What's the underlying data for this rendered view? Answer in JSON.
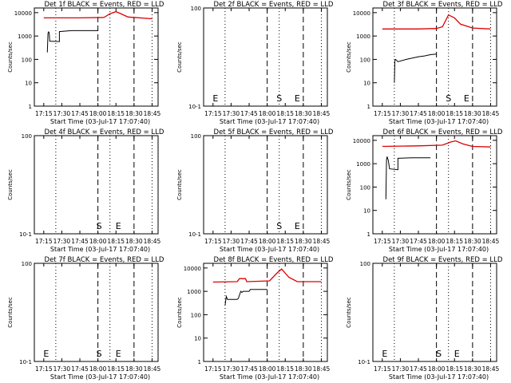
{
  "chart_data": [
    {
      "type": "line",
      "title": "Det 1f BLACK = Events, RED = LLD",
      "xlabel": "Start Time (03-Jul-17 17:07:40)",
      "ylabel": "Counts/sec",
      "x_ticks": [
        "17:15",
        "17:30",
        "17:45",
        "18:00",
        "18:15",
        "18:30",
        "18:45"
      ],
      "y_scale": "log",
      "y_ticks": [
        "1",
        "10",
        "100",
        "1000",
        "10000"
      ],
      "markers": [],
      "series": [
        {
          "name": "Events",
          "color": "#000000",
          "points": [
            [
              "17:18",
              200
            ],
            [
              "17:18.5",
              1300
            ],
            [
              "17:19",
              1500
            ],
            [
              "17:19.5",
              1400
            ],
            [
              "17:20",
              600
            ],
            [
              "17:28",
              580
            ],
            [
              "17:28",
              1550
            ],
            [
              "17:38",
              1700
            ],
            [
              "18:00",
              1700
            ]
          ]
        },
        {
          "name": "LLD",
          "color": "#dd0000",
          "points": [
            [
              "17:15",
              6000
            ],
            [
              "17:45",
              6000
            ],
            [
              "18:05",
              6200
            ],
            [
              "18:10",
              9000
            ],
            [
              "18:15",
              11000
            ],
            [
              "18:20",
              8500
            ],
            [
              "18:25",
              6500
            ],
            [
              "18:45",
              5500
            ]
          ]
        }
      ]
    },
    {
      "type": "line",
      "title": "Det 2f BLACK = Events, RED = LLD",
      "xlabel": "Start Time (03-Jul-17 17:07:40)",
      "ylabel": "Counts/sec",
      "x_ticks": [
        "17:15",
        "17:30",
        "17:45",
        "18:00",
        "18:15",
        "18:30",
        "18:45"
      ],
      "y_scale": "log",
      "y_ticks": [
        "10-1",
        "100"
      ],
      "markers": [
        {
          "label": "E",
          "x": "17:17"
        },
        {
          "label": "S",
          "x": "18:10"
        },
        {
          "label": "E",
          "x": "18:25"
        }
      ],
      "series": []
    },
    {
      "type": "line",
      "title": "Det 3f BLACK = Events, RED = LLD",
      "xlabel": "Start Time (03-Jul-17 17:07:40)",
      "ylabel": "Counts/sec",
      "x_ticks": [
        "17:15",
        "17:30",
        "17:45",
        "18:00",
        "18:15",
        "18:30",
        "18:45"
      ],
      "y_scale": "log",
      "y_ticks": [
        "1",
        "10",
        "100",
        "1000",
        "10000"
      ],
      "markers": [
        {
          "label": "S",
          "x": "18:10"
        },
        {
          "label": "E",
          "x": "18:25"
        }
      ],
      "series": [
        {
          "name": "Events",
          "color": "#000000",
          "points": [
            [
              "17:25",
              10
            ],
            [
              "17:25.5",
              90
            ],
            [
              "17:26",
              100
            ],
            [
              "17:28",
              80
            ],
            [
              "17:35",
              100
            ],
            [
              "17:45",
              130
            ],
            [
              "17:50",
              140
            ],
            [
              "17:55",
              160
            ],
            [
              "18:00",
              170
            ]
          ]
        },
        {
          "name": "LLD",
          "color": "#dd0000",
          "points": [
            [
              "17:15",
              2000
            ],
            [
              "17:45",
              2000
            ],
            [
              "18:00",
              2100
            ],
            [
              "18:05",
              2500
            ],
            [
              "18:10",
              8000
            ],
            [
              "18:15",
              6000
            ],
            [
              "18:20",
              3200
            ],
            [
              "18:30",
              2200
            ],
            [
              "18:45",
              2000
            ]
          ]
        }
      ]
    },
    {
      "type": "line",
      "title": "Det 4f BLACK = Events, RED = LLD",
      "xlabel": "Start Time (03-Jul-17 17:07:40)",
      "ylabel": "Counts/sec",
      "x_ticks": [
        "17:15",
        "17:30",
        "17:45",
        "18:00",
        "18:15",
        "18:30",
        "18:45"
      ],
      "y_scale": "log",
      "y_ticks": [
        "10-1",
        "100"
      ],
      "markers": [
        {
          "label": "S",
          "x": "18:01"
        },
        {
          "label": "E",
          "x": "18:17"
        }
      ],
      "series": []
    },
    {
      "type": "line",
      "title": "Det 5f BLACK = Events, RED = LLD",
      "xlabel": "Start Time (03-Jul-17 17:07:40)",
      "ylabel": "Counts/sec",
      "x_ticks": [
        "17:15",
        "17:30",
        "17:45",
        "18:00",
        "18:15",
        "18:30",
        "18:45"
      ],
      "y_scale": "log",
      "y_ticks": [
        "10-1",
        "100"
      ],
      "markers": [
        {
          "label": "S",
          "x": "18:10"
        },
        {
          "label": "E",
          "x": "18:25"
        }
      ],
      "series": []
    },
    {
      "type": "line",
      "title": "Det 6f BLACK = Events, RED = LLD",
      "xlabel": "Start Time (03-Jul-17 17:07:40)",
      "ylabel": "Counts/sec",
      "x_ticks": [
        "17:15",
        "17:30",
        "17:45",
        "18:00",
        "18:15",
        "18:30",
        "18:45"
      ],
      "y_scale": "log",
      "y_ticks": [
        "1",
        "10",
        "100",
        "1000",
        "10000"
      ],
      "markers": [],
      "series": [
        {
          "name": "Events",
          "color": "#000000",
          "points": [
            [
              "17:18",
              30
            ],
            [
              "17:18.5",
              1500
            ],
            [
              "17:19",
              2000
            ],
            [
              "17:20",
              1400
            ],
            [
              "17:21",
              600
            ],
            [
              "17:28",
              550
            ],
            [
              "17:28",
              1700
            ],
            [
              "17:40",
              1800
            ],
            [
              "17:55",
              1800
            ]
          ]
        },
        {
          "name": "LLD",
          "color": "#dd0000",
          "points": [
            [
              "17:15",
              5500
            ],
            [
              "17:45",
              5800
            ],
            [
              "18:05",
              6200
            ],
            [
              "18:12",
              8500
            ],
            [
              "18:16",
              9500
            ],
            [
              "18:22",
              7000
            ],
            [
              "18:30",
              5500
            ],
            [
              "18:45",
              5200
            ]
          ]
        }
      ]
    },
    {
      "type": "line",
      "title": "Det 7f BLACK = Events, RED = LLD",
      "xlabel": "Start Time (03-Jul-17 17:07:40)",
      "ylabel": "Counts/sec",
      "x_ticks": [
        "17:15",
        "17:30",
        "17:45",
        "18:00",
        "18:15",
        "18:30",
        "18:45"
      ],
      "y_scale": "log",
      "y_ticks": [
        "10-1",
        "100"
      ],
      "markers": [
        {
          "label": "E",
          "x": "17:17"
        },
        {
          "label": "S",
          "x": "18:01"
        },
        {
          "label": "E",
          "x": "18:17"
        }
      ],
      "series": []
    },
    {
      "type": "line",
      "title": "Det 8f BLACK = Events, RED = LLD",
      "xlabel": "Start Time (03-Jul-17 17:07:40)",
      "ylabel": "Counts/sec",
      "x_ticks": [
        "17:15",
        "17:30",
        "17:45",
        "18:00",
        "18:15",
        "18:30",
        "18:45"
      ],
      "y_scale": "log",
      "y_ticks": [
        "1",
        "10",
        "100",
        "1000",
        "10000"
      ],
      "markers": [],
      "series": [
        {
          "name": "Events",
          "color": "#000000",
          "points": [
            [
              "17:25",
              250
            ],
            [
              "17:26",
              600
            ],
            [
              "17:27",
              450
            ],
            [
              "17:35",
              450
            ],
            [
              "17:36",
              500
            ],
            [
              "17:38",
              1000
            ],
            [
              "17:39",
              900
            ],
            [
              "17:40",
              1000
            ],
            [
              "17:45",
              1000
            ],
            [
              "17:46",
              1200
            ],
            [
              "17:50",
              1200
            ],
            [
              "18:00",
              1200
            ]
          ]
        },
        {
          "name": "LLD",
          "color": "#dd0000",
          "points": [
            [
              "17:15",
              2500
            ],
            [
              "17:35",
              2600
            ],
            [
              "17:37",
              3500
            ],
            [
              "17:42",
              3500
            ],
            [
              "17:43",
              2600
            ],
            [
              "18:02",
              2800
            ],
            [
              "18:08",
              6000
            ],
            [
              "18:12",
              9000
            ],
            [
              "18:18",
              4000
            ],
            [
              "18:25",
              2600
            ],
            [
              "18:45",
              2600
            ]
          ]
        }
      ]
    },
    {
      "type": "line",
      "title": "Det 9f BLACK = Events, RED = LLD",
      "xlabel": "Start Time (03-Jul-17 17:07:40)",
      "ylabel": "Counts/sec",
      "x_ticks": [
        "17:15",
        "17:30",
        "17:45",
        "18:00",
        "18:15",
        "18:30",
        "18:45"
      ],
      "y_scale": "log",
      "y_ticks": [
        "10-1",
        "100"
      ],
      "markers": [
        {
          "label": "E",
          "x": "17:17"
        },
        {
          "label": "S",
          "x": "18:02"
        },
        {
          "label": "E",
          "x": "18:17"
        }
      ],
      "series": []
    }
  ]
}
